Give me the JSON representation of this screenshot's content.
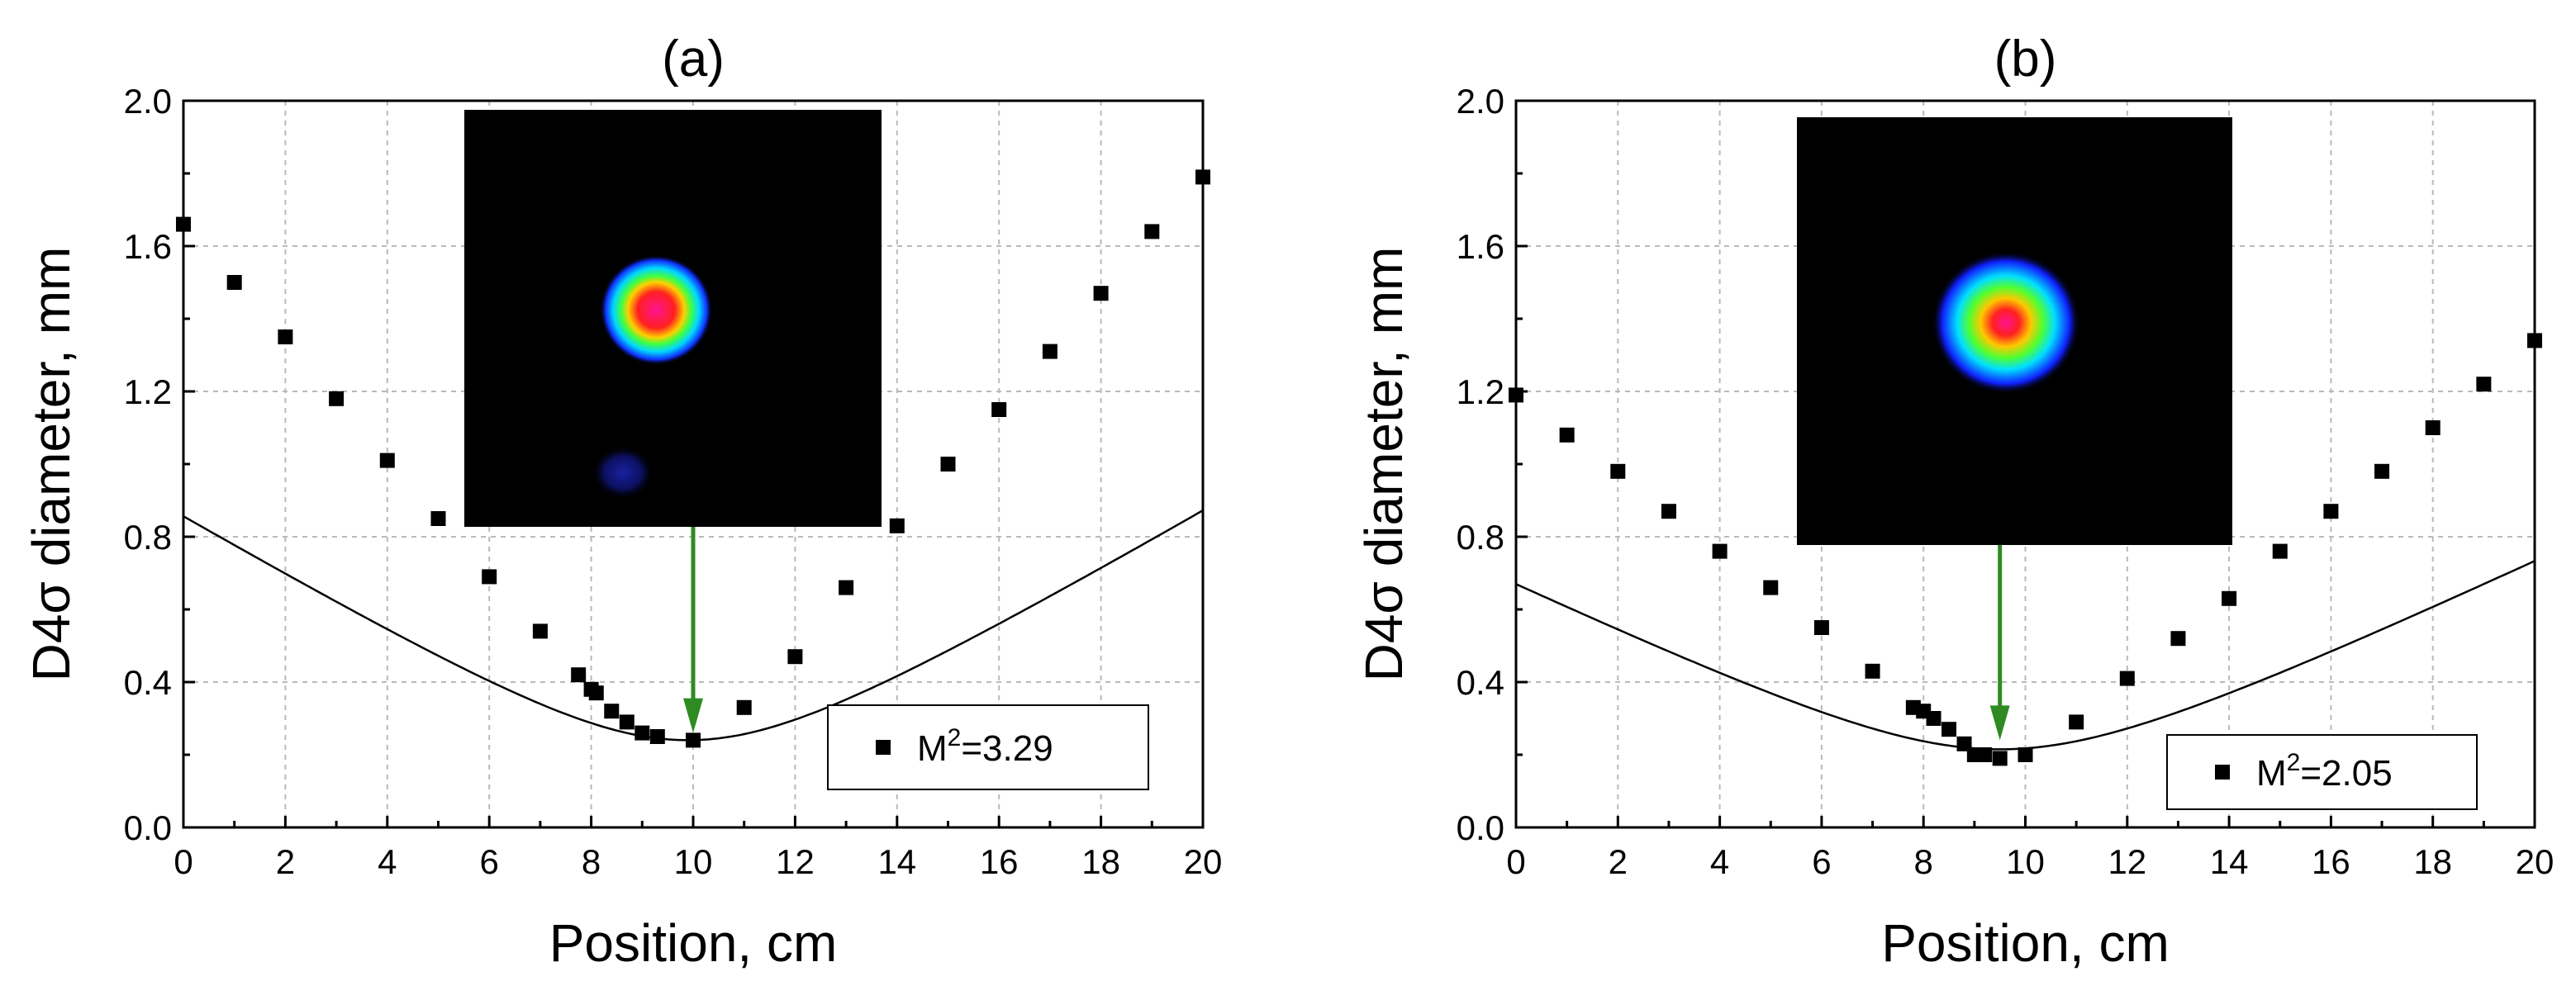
{
  "colors": {
    "arrow": "#2e8b22",
    "points": "#000000",
    "grid": "#b9b9b9",
    "inset_background": "#000000"
  },
  "chart_data": [
    {
      "type": "scatter",
      "title": "(a)",
      "xlabel": "Position, cm",
      "ylabel": "D4σ diameter, mm",
      "xlim": [
        0,
        20
      ],
      "ylim": [
        0,
        2.0
      ],
      "x_ticks": [
        "0",
        "2",
        "4",
        "6",
        "8",
        "10",
        "12",
        "14",
        "16",
        "18",
        "20"
      ],
      "y_ticks": [
        "0.0",
        "0.4",
        "0.8",
        "1.2",
        "1.6",
        "2.0"
      ],
      "grid": true,
      "legend": {
        "position": "bottom-right",
        "marker": "square",
        "prefix": "M",
        "sup": "2",
        "suffix": "=3.29"
      },
      "series": [
        {
          "x": [
            0,
            1,
            2,
            3,
            4,
            5,
            6,
            7,
            7.75,
            8,
            8.1,
            8.4,
            8.7,
            9,
            9.3,
            10,
            11,
            12,
            13,
            14,
            15,
            16,
            17,
            18,
            19,
            20
          ],
          "y": [
            1.66,
            1.5,
            1.35,
            1.18,
            1.01,
            0.85,
            0.69,
            0.54,
            0.42,
            0.38,
            0.37,
            0.32,
            0.29,
            0.26,
            0.25,
            0.24,
            0.33,
            0.47,
            0.66,
            0.83,
            1.0,
            1.15,
            1.31,
            1.47,
            1.64,
            1.79
          ]
        }
      ],
      "fit": {
        "type": "hyperbolic",
        "waist_position": 9.9,
        "waist_diameter": 0.24,
        "z_r": 2.89
      },
      "inset": {
        "description": "beam profile",
        "arrow_target_x": 10,
        "arrow_target_y": 0.26,
        "main_spot": [
          0.46,
          0.48
        ],
        "ghost_spot": [
          0.38,
          0.87
        ]
      }
    },
    {
      "type": "scatter",
      "title": "(b)",
      "xlabel": "Position, cm",
      "ylabel": "D4σ diameter, mm",
      "xlim": [
        0,
        20
      ],
      "ylim": [
        0,
        2.0
      ],
      "x_ticks": [
        "0",
        "2",
        "4",
        "6",
        "8",
        "10",
        "12",
        "14",
        "16",
        "18",
        "20"
      ],
      "y_ticks": [
        "0.0",
        "0.4",
        "0.8",
        "1.2",
        "1.6",
        "2.0"
      ],
      "grid": true,
      "legend": {
        "position": "bottom-right",
        "marker": "square",
        "prefix": "M",
        "sup": "2",
        "suffix": "=2.05"
      },
      "series": [
        {
          "x": [
            0,
            1,
            2,
            3,
            4,
            5,
            6,
            7,
            7.8,
            8,
            8.2,
            8.5,
            8.8,
            9,
            9.2,
            9.5,
            10,
            11,
            12,
            13,
            14,
            15,
            16,
            17,
            18,
            19,
            20
          ],
          "y": [
            1.19,
            1.08,
            0.98,
            0.87,
            0.76,
            0.66,
            0.55,
            0.43,
            0.33,
            0.32,
            0.3,
            0.27,
            0.23,
            0.2,
            0.2,
            0.19,
            0.2,
            0.29,
            0.41,
            0.52,
            0.63,
            0.76,
            0.87,
            0.98,
            1.1,
            1.22,
            1.34
          ]
        }
      ],
      "fit": {
        "type": "hyperbolic",
        "waist_position": 9.5,
        "waist_diameter": 0.215,
        "z_r": 3.22
      },
      "inset": {
        "description": "beam profile",
        "arrow_target_x": 9.5,
        "arrow_target_y": 0.24,
        "main_spot": [
          0.48,
          0.48
        ]
      }
    }
  ]
}
